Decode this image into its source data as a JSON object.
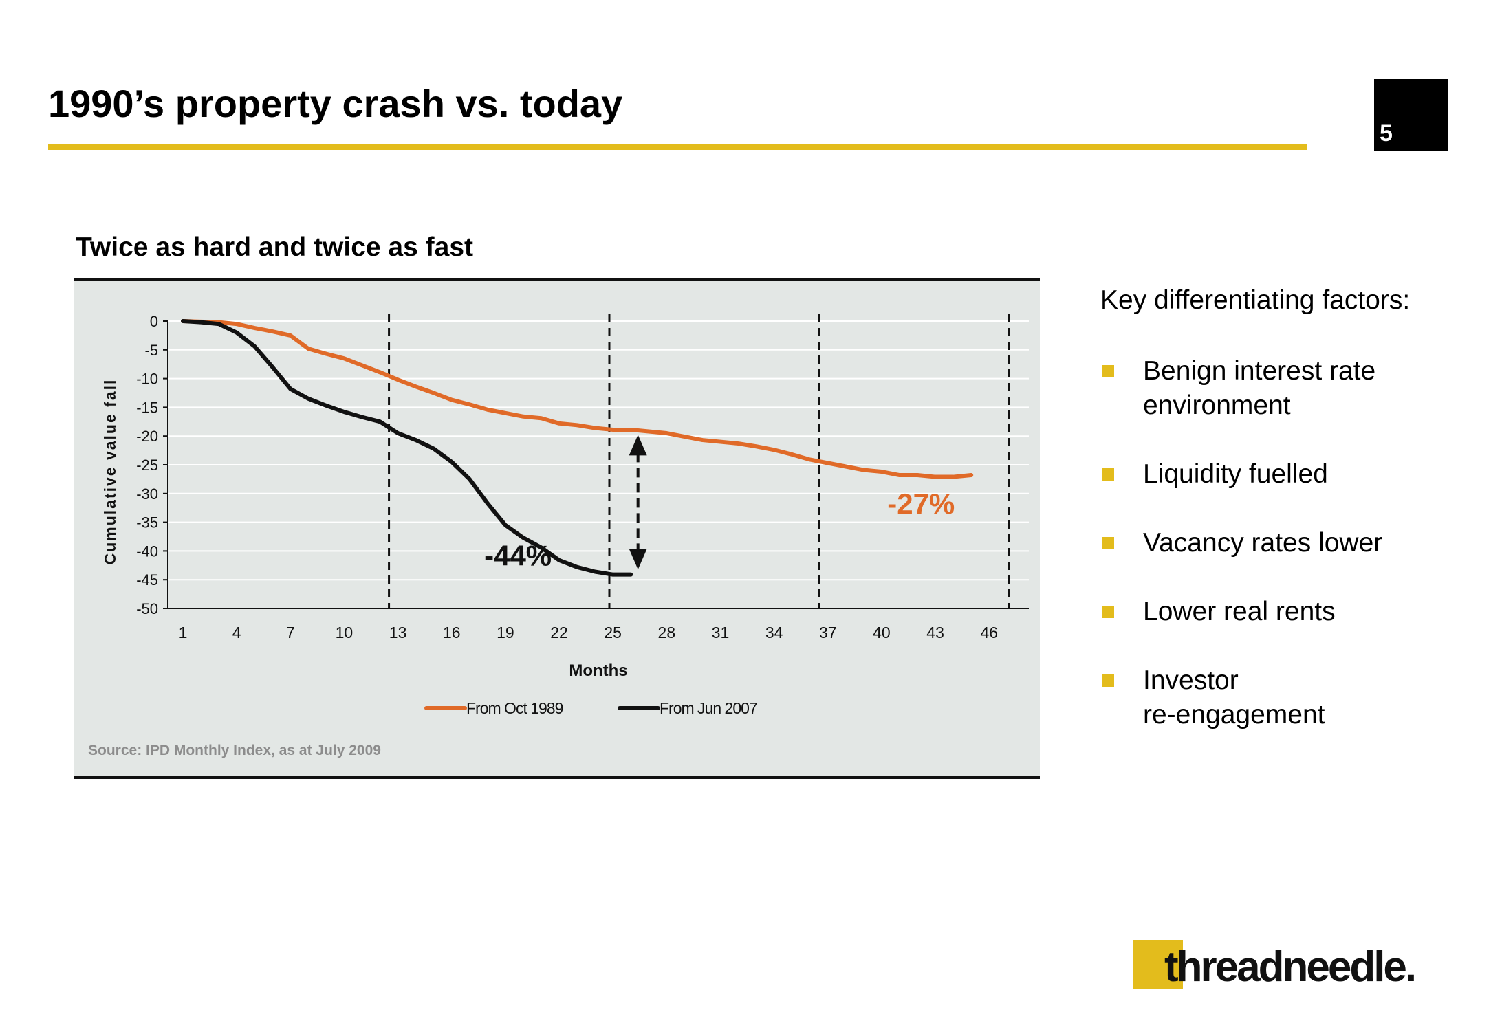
{
  "header": {
    "title": "1990’s property crash vs. today",
    "page_number": "5"
  },
  "chart_heading": "Twice as hard and twice as fast",
  "source": "Source: IPD Monthly Index, as at July 2009",
  "key_factors": {
    "title": "Key differentiating factors:",
    "items": [
      {
        "line1": "Benign interest rate",
        "line2": "environment"
      },
      {
        "line1": "Liquidity fuelled",
        "line2": ""
      },
      {
        "line1": "Vacancy rates lower",
        "line2": ""
      },
      {
        "line1": "Lower real rents",
        "line2": ""
      },
      {
        "line1": "Investor",
        "line2": "re-engagement"
      }
    ]
  },
  "logo_text": "threadneedle.",
  "colors": {
    "accent": "#E3BC1C",
    "orange": "#E06A28",
    "black": "#111111",
    "panel": "#E3E7E5"
  },
  "chart_data": {
    "type": "line",
    "xlabel": "Months",
    "ylabel": "Cumulative value fall",
    "xlim": [
      1,
      49
    ],
    "ylim": [
      -50,
      0
    ],
    "yticks": [
      0,
      -5,
      -10,
      -15,
      -20,
      -25,
      -30,
      -35,
      -40,
      -45,
      -50
    ],
    "xticks": [
      1,
      4,
      7,
      10,
      13,
      16,
      19,
      22,
      25,
      28,
      31,
      34,
      37,
      40,
      43,
      46
    ],
    "series": [
      {
        "name": "From Oct 1989",
        "color": "#E06A28",
        "x": [
          1,
          2,
          3,
          4,
          5,
          6,
          7,
          8,
          9,
          10,
          11,
          12,
          13,
          14,
          15,
          16,
          17,
          18,
          19,
          20,
          21,
          22,
          23,
          24,
          25,
          26,
          27,
          28,
          29,
          30,
          31,
          32,
          33,
          34,
          35,
          36,
          37,
          38,
          39,
          40,
          41,
          42,
          43,
          44,
          45
        ],
        "values": [
          0,
          -0.1,
          -0.2,
          -0.5,
          -1.2,
          -1.8,
          -2.5,
          -4.8,
          -5.7,
          -6.5,
          -7.7,
          -8.9,
          -10.2,
          -11.4,
          -12.5,
          -13.7,
          -14.5,
          -15.4,
          -16,
          -16.6,
          -16.9,
          -17.8,
          -18.1,
          -18.6,
          -18.9,
          -18.9,
          -19.2,
          -19.5,
          -20.1,
          -20.7,
          -21,
          -21.3,
          -21.8,
          -22.4,
          -23.2,
          -24.1,
          -24.7,
          -25.3,
          -25.9,
          -26.2,
          -26.8,
          -26.8,
          -27.1,
          -27.1,
          -26.8
        ]
      },
      {
        "name": "From Jun 2007",
        "color": "#111111",
        "x": [
          1,
          2,
          3,
          4,
          5,
          6,
          7,
          8,
          9,
          10,
          11,
          12,
          13,
          14,
          15,
          16,
          17,
          18,
          19,
          20,
          21,
          22,
          23,
          24,
          25,
          26
        ],
        "values": [
          0,
          -0.2,
          -0.5,
          -2,
          -4.4,
          -8,
          -11.8,
          -13.5,
          -14.7,
          -15.8,
          -16.7,
          -17.5,
          -19.5,
          -20.7,
          -22.2,
          -24.5,
          -27.5,
          -31.7,
          -35.5,
          -37.7,
          -39.4,
          -41.6,
          -42.8,
          -43.6,
          -44.1,
          -44.1
        ]
      }
    ],
    "vertical_dashed_lines_at": [
      12.5,
      24.8,
      36.5,
      47.1
    ],
    "annotations": [
      {
        "text": "-44%",
        "x": 19.7,
        "y": -42.5
      },
      {
        "text": "-27%",
        "x": 42.2,
        "y": -33.5
      }
    ],
    "arrow": {
      "x": 26.4,
      "from": -20.5,
      "to": -42.5
    }
  }
}
